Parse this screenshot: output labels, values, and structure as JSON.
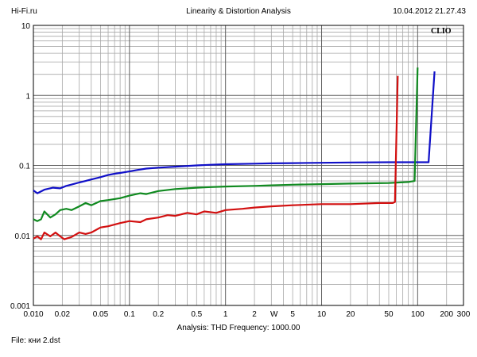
{
  "header": {
    "site": "Hi-Fi.ru",
    "title": "Linearity & Distortion Analysis",
    "timestamp": "10.04.2012 21.27.43"
  },
  "brand": "CLIO",
  "footer": {
    "analysis": "Analysis: THD   Frequency: 1000.00",
    "file": "File: кни 2.dst"
  },
  "chart_data": {
    "type": "line",
    "title": "Linearity & Distortion Analysis",
    "x_scale": "log",
    "y_scale": "log",
    "xlim": [
      0.01,
      300
    ],
    "ylim": [
      0.001,
      10
    ],
    "grid": true,
    "x_ticks": [
      {
        "value": 0.01,
        "label": "0.010"
      },
      {
        "value": 0.02,
        "label": "0.02"
      },
      {
        "value": 0.05,
        "label": "0.05"
      },
      {
        "value": 0.1,
        "label": "0.1"
      },
      {
        "value": 0.2,
        "label": "0.2"
      },
      {
        "value": 0.5,
        "label": "0.5"
      },
      {
        "value": 1,
        "label": "1"
      },
      {
        "value": 2,
        "label": "2"
      },
      {
        "value": 5,
        "label": "5"
      },
      {
        "value": 10,
        "label": "10"
      },
      {
        "value": 20,
        "label": "20"
      },
      {
        "value": 50,
        "label": "50"
      },
      {
        "value": 100,
        "label": "100"
      },
      {
        "value": 200,
        "label": "200"
      },
      {
        "value": 300,
        "label": "300"
      }
    ],
    "x_unit_label": {
      "value": 3.2,
      "label": "W"
    },
    "y_ticks": [
      {
        "value": 10,
        "label": "10"
      },
      {
        "value": 1,
        "label": "1"
      },
      {
        "value": 0.1,
        "label": "0.1"
      },
      {
        "value": 0.01,
        "label": "0.01"
      },
      {
        "value": 0.001,
        "label": "0.001"
      }
    ],
    "series": [
      {
        "color": "#1010c8",
        "points": [
          [
            0.01,
            0.044
          ],
          [
            0.011,
            0.04
          ],
          [
            0.013,
            0.045
          ],
          [
            0.016,
            0.048
          ],
          [
            0.019,
            0.047
          ],
          [
            0.022,
            0.051
          ],
          [
            0.026,
            0.054
          ],
          [
            0.03,
            0.057
          ],
          [
            0.035,
            0.06
          ],
          [
            0.04,
            0.063
          ],
          [
            0.05,
            0.068
          ],
          [
            0.06,
            0.073
          ],
          [
            0.07,
            0.076
          ],
          [
            0.08,
            0.078
          ],
          [
            0.1,
            0.082
          ],
          [
            0.12,
            0.086
          ],
          [
            0.15,
            0.09
          ],
          [
            0.2,
            0.093
          ],
          [
            0.3,
            0.096
          ],
          [
            0.5,
            0.1
          ],
          [
            0.7,
            0.102
          ],
          [
            1,
            0.104
          ],
          [
            2,
            0.106
          ],
          [
            3,
            0.107
          ],
          [
            5,
            0.108
          ],
          [
            10,
            0.109
          ],
          [
            20,
            0.11
          ],
          [
            50,
            0.111
          ],
          [
            80,
            0.111
          ],
          [
            130,
            0.111
          ],
          [
            150,
            2.2
          ]
        ]
      },
      {
        "color": "#108a20",
        "points": [
          [
            0.01,
            0.017
          ],
          [
            0.011,
            0.016
          ],
          [
            0.012,
            0.017
          ],
          [
            0.013,
            0.022
          ],
          [
            0.015,
            0.018
          ],
          [
            0.017,
            0.02
          ],
          [
            0.019,
            0.023
          ],
          [
            0.022,
            0.024
          ],
          [
            0.025,
            0.023
          ],
          [
            0.03,
            0.026
          ],
          [
            0.035,
            0.029
          ],
          [
            0.04,
            0.027
          ],
          [
            0.05,
            0.031
          ],
          [
            0.06,
            0.032
          ],
          [
            0.08,
            0.034
          ],
          [
            0.1,
            0.037
          ],
          [
            0.13,
            0.04
          ],
          [
            0.15,
            0.039
          ],
          [
            0.2,
            0.043
          ],
          [
            0.3,
            0.046
          ],
          [
            0.5,
            0.048
          ],
          [
            0.7,
            0.049
          ],
          [
            1,
            0.05
          ],
          [
            2,
            0.051
          ],
          [
            3,
            0.052
          ],
          [
            5,
            0.053
          ],
          [
            10,
            0.054
          ],
          [
            20,
            0.055
          ],
          [
            50,
            0.056
          ],
          [
            80,
            0.058
          ],
          [
            93,
            0.06
          ],
          [
            100,
            2.5
          ]
        ]
      },
      {
        "color": "#d21010",
        "points": [
          [
            0.01,
            0.009
          ],
          [
            0.011,
            0.0097
          ],
          [
            0.012,
            0.0088
          ],
          [
            0.013,
            0.011
          ],
          [
            0.015,
            0.0097
          ],
          [
            0.017,
            0.011
          ],
          [
            0.019,
            0.0097
          ],
          [
            0.021,
            0.0088
          ],
          [
            0.025,
            0.0095
          ],
          [
            0.03,
            0.011
          ],
          [
            0.035,
            0.0105
          ],
          [
            0.04,
            0.011
          ],
          [
            0.05,
            0.013
          ],
          [
            0.06,
            0.0135
          ],
          [
            0.08,
            0.015
          ],
          [
            0.1,
            0.016
          ],
          [
            0.13,
            0.0155
          ],
          [
            0.15,
            0.017
          ],
          [
            0.2,
            0.018
          ],
          [
            0.25,
            0.0195
          ],
          [
            0.3,
            0.019
          ],
          [
            0.4,
            0.021
          ],
          [
            0.5,
            0.02
          ],
          [
            0.6,
            0.022
          ],
          [
            0.8,
            0.021
          ],
          [
            1,
            0.023
          ],
          [
            1.5,
            0.024
          ],
          [
            2,
            0.025
          ],
          [
            3,
            0.026
          ],
          [
            5,
            0.027
          ],
          [
            10,
            0.028
          ],
          [
            20,
            0.028
          ],
          [
            40,
            0.029
          ],
          [
            55,
            0.029
          ],
          [
            58,
            0.03
          ],
          [
            62,
            1.9
          ]
        ]
      }
    ]
  }
}
